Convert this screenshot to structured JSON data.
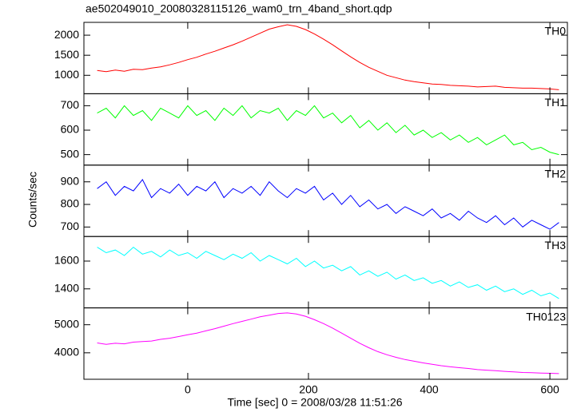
{
  "chart_data": {
    "type": "line",
    "title": "ae502049010_20080328115126_wam0_trn_4band_short.qdp",
    "x_label": "Time [sec] 0 = 2008/03/28 11:51:26",
    "y_label": "Counts/sec",
    "xlim": [
      -172,
      629
    ],
    "xticks": [
      0,
      200,
      400,
      600
    ],
    "x": [
      -150,
      -135,
      -120,
      -105,
      -90,
      -75,
      -60,
      -45,
      -30,
      -15,
      0,
      15,
      30,
      45,
      60,
      75,
      90,
      105,
      120,
      135,
      150,
      165,
      180,
      195,
      210,
      225,
      240,
      255,
      270,
      285,
      300,
      315,
      330,
      345,
      360,
      375,
      390,
      405,
      420,
      435,
      450,
      465,
      480,
      495,
      510,
      525,
      540,
      555,
      570,
      585,
      600,
      615
    ],
    "series": [
      {
        "name": "TH0",
        "color": "#ff0000",
        "ylim": [
          540,
          2320
        ],
        "yticks": [
          1000,
          1500,
          2000
        ],
        "values": [
          1120,
          1090,
          1130,
          1100,
          1150,
          1140,
          1180,
          1210,
          1260,
          1320,
          1390,
          1450,
          1530,
          1600,
          1680,
          1760,
          1850,
          1950,
          2050,
          2150,
          2210,
          2260,
          2220,
          2140,
          2030,
          1900,
          1760,
          1610,
          1460,
          1320,
          1200,
          1100,
          1000,
          940,
          880,
          840,
          810,
          780,
          770,
          750,
          740,
          730,
          710,
          720,
          730,
          700,
          690,
          680,
          680,
          670,
          660,
          640
        ]
      },
      {
        "name": "TH1",
        "color": "#00ff00",
        "ylim": [
          457,
          749
        ],
        "yticks": [
          500,
          600,
          700
        ],
        "values": [
          670,
          690,
          650,
          700,
          660,
          680,
          640,
          690,
          670,
          650,
          700,
          660,
          680,
          640,
          690,
          660,
          700,
          650,
          680,
          670,
          690,
          640,
          680,
          660,
          700,
          650,
          670,
          630,
          660,
          610,
          640,
          600,
          630,
          590,
          620,
          580,
          600,
          570,
          590,
          560,
          580,
          550,
          570,
          540,
          560,
          580,
          540,
          550,
          520,
          530,
          510,
          500
        ]
      },
      {
        "name": "TH2",
        "color": "#0000ff",
        "ylim": [
          658,
          974
        ],
        "yticks": [
          700,
          800,
          900
        ],
        "values": [
          870,
          900,
          840,
          880,
          860,
          910,
          830,
          870,
          850,
          890,
          840,
          880,
          860,
          900,
          830,
          870,
          850,
          880,
          840,
          900,
          860,
          830,
          870,
          850,
          880,
          820,
          850,
          800,
          840,
          790,
          820,
          780,
          800,
          760,
          790,
          770,
          750,
          780,
          740,
          760,
          730,
          770,
          740,
          720,
          750,
          710,
          740,
          700,
          730,
          710,
          690,
          720
        ]
      },
      {
        "name": "TH3",
        "color": "#00ffff",
        "ylim": [
          1263,
          1777
        ],
        "yticks": [
          1400,
          1600
        ],
        "values": [
          1700,
          1660,
          1680,
          1640,
          1700,
          1650,
          1670,
          1630,
          1680,
          1640,
          1660,
          1620,
          1670,
          1640,
          1610,
          1650,
          1620,
          1660,
          1600,
          1640,
          1610,
          1580,
          1620,
          1560,
          1600,
          1550,
          1570,
          1530,
          1560,
          1500,
          1530,
          1490,
          1520,
          1470,
          1500,
          1460,
          1480,
          1440,
          1460,
          1420,
          1450,
          1410,
          1430,
          1390,
          1420,
          1380,
          1400,
          1360,
          1390,
          1350,
          1370,
          1330
        ]
      },
      {
        "name": "TH0123",
        "color": "#ff00ff",
        "ylim": [
          3057,
          5600
        ],
        "yticks": [
          4000,
          5000
        ],
        "values": [
          4350,
          4300,
          4340,
          4320,
          4380,
          4400,
          4420,
          4480,
          4520,
          4580,
          4640,
          4700,
          4780,
          4860,
          4950,
          5040,
          5120,
          5200,
          5280,
          5340,
          5400,
          5420,
          5380,
          5300,
          5180,
          5040,
          4880,
          4700,
          4520,
          4340,
          4180,
          4040,
          3930,
          3840,
          3760,
          3700,
          3640,
          3590,
          3540,
          3500,
          3470,
          3440,
          3400,
          3380,
          3360,
          3340,
          3320,
          3300,
          3290,
          3280,
          3270,
          3260
        ]
      }
    ]
  }
}
